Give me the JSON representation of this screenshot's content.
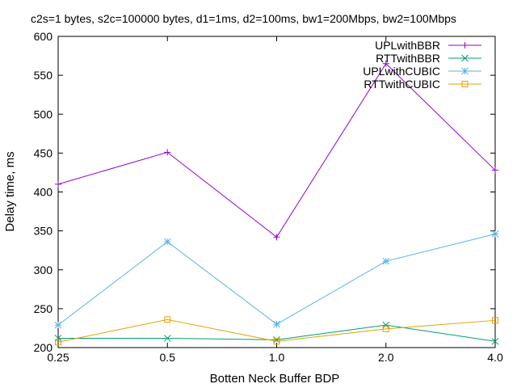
{
  "chart_data": {
    "type": "line",
    "title": "c2s=1 bytes, s2c=100000 bytes, d1=1ms, d2=100ms, bw1=200Mbps, bw2=100Mbps",
    "xlabel": "Botten Neck Buffer BDP",
    "ylabel": "Delay time, ms",
    "categories": [
      "0.25",
      "0.5",
      "1.0",
      "2.0",
      "4.0"
    ],
    "ylim": [
      200,
      600
    ],
    "yticks": [
      200,
      250,
      300,
      350,
      400,
      450,
      500,
      550,
      600
    ],
    "grid": false,
    "legend": "top-right",
    "series": [
      {
        "name": "UPLwithBBR",
        "color": "#9400d3",
        "marker": "plus",
        "values": [
          410,
          451,
          342,
          565,
          428
        ]
      },
      {
        "name": "RTTwithBBR",
        "color": "#009e73",
        "marker": "cross",
        "values": [
          212,
          212,
          210,
          229,
          208
        ]
      },
      {
        "name": "UPLwithCUBIC",
        "color": "#56b4e9",
        "marker": "star",
        "values": [
          229,
          336,
          230,
          311,
          346
        ]
      },
      {
        "name": "RTTwithCUBIC",
        "color": "#e69f00",
        "marker": "square",
        "values": [
          207,
          236,
          208,
          224,
          235
        ]
      }
    ]
  }
}
